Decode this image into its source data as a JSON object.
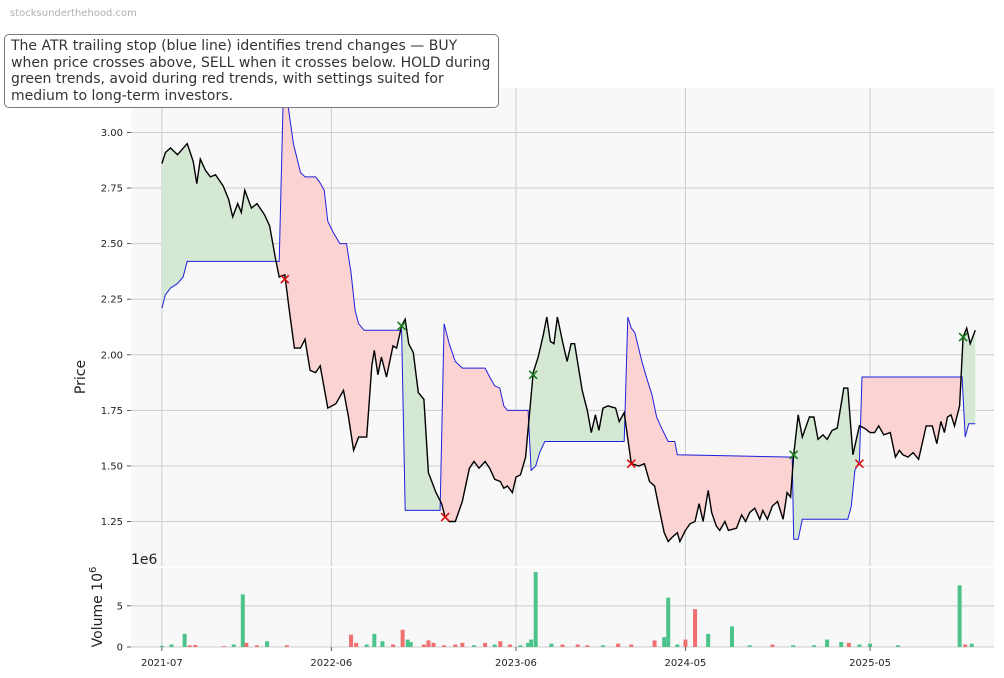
{
  "watermark": "stocksunderthehood.com",
  "description": "The ATR trailing stop (blue line) identifies trend changes — BUY when price crosses above, SELL when it crosses below. HOLD during green trends, avoid during red trends, with settings suited for medium to long-term investors.",
  "colors": {
    "price": "#000000",
    "stop": "#1f1fdd",
    "bull_fill": "#d4e8d4",
    "bear_fill": "#fbd3d3",
    "buy_marker": "#1a7a1a",
    "sell_marker": "#dd1111",
    "vol_up": "#4cc38a",
    "vol_down": "#f07070",
    "plot_bg": "#f8f8f8",
    "grid": "#cccccc"
  },
  "chart_data": {
    "type": "line",
    "ylabel": "Price",
    "volume_ylabel": "Volume  10",
    "volume_ylabel_exp": "6",
    "volume_offset_label": "1e6",
    "x_ticks": [
      "2021-07",
      "2022-06",
      "2023-06",
      "2024-05",
      "2025-05"
    ],
    "x_tick_dates": [
      "2021-07-01",
      "2022-06-01",
      "2023-06-01",
      "2024-05-01",
      "2025-05-01"
    ],
    "price_yticks": [
      "1.25",
      "1.50",
      "1.75",
      "2.00",
      "2.25",
      "2.50",
      "2.75",
      "3.00"
    ],
    "volume_yticks": [
      "0",
      "5"
    ],
    "ylim": [
      1.05,
      3.2
    ],
    "volume_ylim": [
      0,
      9.6
    ],
    "price": [
      [
        "2021-07-01",
        2.86
      ],
      [
        "2021-07-08",
        2.91
      ],
      [
        "2021-07-18",
        2.93
      ],
      [
        "2021-08-01",
        2.9
      ],
      [
        "2021-08-20",
        2.95
      ],
      [
        "2021-09-01",
        2.87
      ],
      [
        "2021-09-08",
        2.77
      ],
      [
        "2021-09-15",
        2.88
      ],
      [
        "2021-09-25",
        2.83
      ],
      [
        "2021-10-05",
        2.8
      ],
      [
        "2021-10-15",
        2.81
      ],
      [
        "2021-10-30",
        2.76
      ],
      [
        "2021-11-10",
        2.7
      ],
      [
        "2021-11-18",
        2.62
      ],
      [
        "2021-11-28",
        2.68
      ],
      [
        "2021-12-05",
        2.64
      ],
      [
        "2021-12-12",
        2.74
      ],
      [
        "2021-12-25",
        2.66
      ],
      [
        "2022-01-05",
        2.68
      ],
      [
        "2022-01-20",
        2.63
      ],
      [
        "2022-01-30",
        2.58
      ],
      [
        "2022-02-10",
        2.44
      ],
      [
        "2022-02-18",
        2.35
      ],
      [
        "2022-03-01",
        2.36
      ],
      [
        "2022-03-10",
        2.2
      ],
      [
        "2022-03-20",
        2.03
      ],
      [
        "2022-04-01",
        2.03
      ],
      [
        "2022-04-10",
        2.07
      ],
      [
        "2022-04-20",
        1.93
      ],
      [
        "2022-05-01",
        1.92
      ],
      [
        "2022-05-10",
        1.95
      ],
      [
        "2022-05-25",
        1.76
      ],
      [
        "2022-06-10",
        1.78
      ],
      [
        "2022-06-25",
        1.84
      ],
      [
        "2022-07-05",
        1.72
      ],
      [
        "2022-07-15",
        1.57
      ],
      [
        "2022-07-25",
        1.63
      ],
      [
        "2022-08-10",
        1.63
      ],
      [
        "2022-08-20",
        1.95
      ],
      [
        "2022-08-25",
        2.02
      ],
      [
        "2022-09-01",
        1.91
      ],
      [
        "2022-09-08",
        1.99
      ],
      [
        "2022-09-18",
        1.9
      ],
      [
        "2022-10-01",
        2.04
      ],
      [
        "2022-10-08",
        2.03
      ],
      [
        "2022-10-18",
        2.13
      ],
      [
        "2022-10-25",
        2.16
      ],
      [
        "2022-11-01",
        2.05
      ],
      [
        "2022-11-10",
        2.01
      ],
      [
        "2022-11-20",
        1.83
      ],
      [
        "2022-12-01",
        1.8
      ],
      [
        "2022-12-10",
        1.47
      ],
      [
        "2022-12-25",
        1.38
      ],
      [
        "2023-01-05",
        1.33
      ],
      [
        "2023-01-12",
        1.27
      ],
      [
        "2023-01-20",
        1.25
      ],
      [
        "2023-02-01",
        1.25
      ],
      [
        "2023-02-15",
        1.34
      ],
      [
        "2023-03-01",
        1.49
      ],
      [
        "2023-03-10",
        1.52
      ],
      [
        "2023-03-20",
        1.49
      ],
      [
        "2023-04-01",
        1.52
      ],
      [
        "2023-04-10",
        1.49
      ],
      [
        "2023-04-20",
        1.44
      ],
      [
        "2023-05-01",
        1.43
      ],
      [
        "2023-05-08",
        1.4
      ],
      [
        "2023-05-15",
        1.41
      ],
      [
        "2023-05-25",
        1.38
      ],
      [
        "2023-06-01",
        1.45
      ],
      [
        "2023-06-10",
        1.46
      ],
      [
        "2023-06-20",
        1.54
      ],
      [
        "2023-07-05",
        1.92
      ],
      [
        "2023-07-15",
        1.99
      ],
      [
        "2023-07-25",
        2.09
      ],
      [
        "2023-08-01",
        2.17
      ],
      [
        "2023-08-08",
        2.06
      ],
      [
        "2023-08-15",
        2.05
      ],
      [
        "2023-08-22",
        2.17
      ],
      [
        "2023-09-01",
        2.06
      ],
      [
        "2023-09-10",
        1.97
      ],
      [
        "2023-09-18",
        2.05
      ],
      [
        "2023-09-25",
        2.05
      ],
      [
        "2023-10-10",
        1.84
      ],
      [
        "2023-10-20",
        1.75
      ],
      [
        "2023-10-28",
        1.65
      ],
      [
        "2023-11-05",
        1.73
      ],
      [
        "2023-11-12",
        1.66
      ],
      [
        "2023-11-20",
        1.76
      ],
      [
        "2023-11-30",
        1.77
      ],
      [
        "2023-12-15",
        1.76
      ],
      [
        "2023-12-22",
        1.7
      ],
      [
        "2024-01-01",
        1.74
      ],
      [
        "2024-01-15",
        1.51
      ],
      [
        "2024-01-30",
        1.5
      ],
      [
        "2024-02-10",
        1.51
      ],
      [
        "2024-02-20",
        1.43
      ],
      [
        "2024-03-01",
        1.41
      ],
      [
        "2024-03-10",
        1.31
      ],
      [
        "2024-03-20",
        1.2
      ],
      [
        "2024-03-28",
        1.16
      ],
      [
        "2024-04-05",
        1.18
      ],
      [
        "2024-04-15",
        1.2
      ],
      [
        "2024-04-20",
        1.16
      ],
      [
        "2024-05-01",
        1.21
      ],
      [
        "2024-05-10",
        1.24
      ],
      [
        "2024-05-20",
        1.25
      ],
      [
        "2024-05-28",
        1.33
      ],
      [
        "2024-06-05",
        1.25
      ],
      [
        "2024-06-15",
        1.39
      ],
      [
        "2024-06-22",
        1.29
      ],
      [
        "2024-07-01",
        1.23
      ],
      [
        "2024-07-08",
        1.21
      ],
      [
        "2024-07-18",
        1.25
      ],
      [
        "2024-07-25",
        1.21
      ],
      [
        "2024-08-10",
        1.22
      ],
      [
        "2024-08-20",
        1.28
      ],
      [
        "2024-08-28",
        1.25
      ],
      [
        "2024-09-05",
        1.29
      ],
      [
        "2024-09-15",
        1.31
      ],
      [
        "2024-09-25",
        1.26
      ],
      [
        "2024-10-01",
        1.3
      ],
      [
        "2024-10-10",
        1.26
      ],
      [
        "2024-10-20",
        1.32
      ],
      [
        "2024-10-30",
        1.34
      ],
      [
        "2024-11-10",
        1.26
      ],
      [
        "2024-11-18",
        1.38
      ],
      [
        "2024-11-25",
        1.36
      ],
      [
        "2024-12-01",
        1.55
      ],
      [
        "2024-12-10",
        1.73
      ],
      [
        "2024-12-18",
        1.63
      ],
      [
        "2025-01-01",
        1.72
      ],
      [
        "2025-01-10",
        1.72
      ],
      [
        "2025-01-18",
        1.62
      ],
      [
        "2025-01-28",
        1.64
      ],
      [
        "2025-02-05",
        1.62
      ],
      [
        "2025-02-15",
        1.66
      ],
      [
        "2025-02-25",
        1.67
      ],
      [
        "2025-03-10",
        1.85
      ],
      [
        "2025-03-18",
        1.85
      ],
      [
        "2025-03-28",
        1.55
      ],
      [
        "2025-04-10",
        1.68
      ],
      [
        "2025-04-20",
        1.67
      ],
      [
        "2025-05-01",
        1.65
      ],
      [
        "2025-05-10",
        1.65
      ],
      [
        "2025-05-18",
        1.68
      ],
      [
        "2025-05-28",
        1.64
      ],
      [
        "2025-06-10",
        1.65
      ],
      [
        "2025-06-20",
        1.54
      ],
      [
        "2025-06-28",
        1.57
      ],
      [
        "2025-07-05",
        1.55
      ],
      [
        "2025-07-15",
        1.54
      ],
      [
        "2025-07-25",
        1.56
      ],
      [
        "2025-08-05",
        1.53
      ],
      [
        "2025-08-20",
        1.68
      ],
      [
        "2025-09-01",
        1.68
      ],
      [
        "2025-09-10",
        1.6
      ],
      [
        "2025-09-18",
        1.7
      ],
      [
        "2025-09-25",
        1.65
      ],
      [
        "2025-10-01",
        1.72
      ],
      [
        "2025-10-08",
        1.73
      ],
      [
        "2025-10-15",
        1.68
      ],
      [
        "2025-10-25",
        1.77
      ],
      [
        "2025-11-01",
        2.08
      ],
      [
        "2025-11-08",
        2.12
      ],
      [
        "2025-11-15",
        2.05
      ],
      [
        "2025-11-25",
        2.11
      ]
    ],
    "atr_stop": [
      [
        "2021-07-01",
        2.21
      ],
      [
        "2021-07-08",
        2.27
      ],
      [
        "2021-07-18",
        2.3
      ],
      [
        "2021-08-01",
        2.32
      ],
      [
        "2021-08-12",
        2.35
      ],
      [
        "2021-08-20",
        2.42
      ],
      [
        "2022-02-18",
        2.42
      ],
      [
        "2022-02-26",
        3.17
      ],
      [
        "2022-03-05",
        3.16
      ],
      [
        "2022-03-18",
        2.95
      ],
      [
        "2022-04-01",
        2.82
      ],
      [
        "2022-04-10",
        2.8
      ],
      [
        "2022-05-01",
        2.8
      ],
      [
        "2022-05-08",
        2.78
      ],
      [
        "2022-05-18",
        2.74
      ],
      [
        "2022-05-25",
        2.6
      ],
      [
        "2022-06-05",
        2.55
      ],
      [
        "2022-06-18",
        2.5
      ],
      [
        "2022-07-01",
        2.5
      ],
      [
        "2022-07-10",
        2.37
      ],
      [
        "2022-07-18",
        2.2
      ],
      [
        "2022-07-25",
        2.14
      ],
      [
        "2022-08-05",
        2.11
      ],
      [
        "2022-10-18",
        2.11
      ],
      [
        "2022-10-25",
        1.3
      ],
      [
        "2023-01-02",
        1.3
      ],
      [
        "2023-01-10",
        2.14
      ],
      [
        "2023-01-20",
        2.05
      ],
      [
        "2023-02-01",
        1.97
      ],
      [
        "2023-02-15",
        1.94
      ],
      [
        "2023-04-01",
        1.94
      ],
      [
        "2023-04-10",
        1.9
      ],
      [
        "2023-04-20",
        1.86
      ],
      [
        "2023-04-30",
        1.85
      ],
      [
        "2023-05-08",
        1.77
      ],
      [
        "2023-05-15",
        1.75
      ],
      [
        "2023-06-25",
        1.75
      ],
      [
        "2023-07-01",
        1.48
      ],
      [
        "2023-07-10",
        1.5
      ],
      [
        "2023-07-18",
        1.56
      ],
      [
        "2023-07-28",
        1.61
      ],
      [
        "2024-01-01",
        1.61
      ],
      [
        "2024-01-08",
        2.17
      ],
      [
        "2024-01-15",
        2.12
      ],
      [
        "2024-01-22",
        2.1
      ],
      [
        "2024-02-05",
        1.97
      ],
      [
        "2024-02-15",
        1.89
      ],
      [
        "2024-02-25",
        1.82
      ],
      [
        "2024-03-05",
        1.72
      ],
      [
        "2024-03-15",
        1.67
      ],
      [
        "2024-03-28",
        1.61
      ],
      [
        "2024-04-10",
        1.61
      ],
      [
        "2024-04-15",
        1.55
      ],
      [
        "2024-11-28",
        1.54
      ],
      [
        "2024-12-01",
        1.17
      ],
      [
        "2024-12-10",
        1.17
      ],
      [
        "2024-12-18",
        1.26
      ],
      [
        "2025-03-18",
        1.26
      ],
      [
        "2025-03-25",
        1.32
      ],
      [
        "2025-04-01",
        1.48
      ],
      [
        "2025-04-10",
        1.52
      ],
      [
        "2025-04-15",
        1.9
      ],
      [
        "2025-10-30",
        1.9
      ],
      [
        "2025-11-05",
        1.63
      ],
      [
        "2025-11-12",
        1.69
      ],
      [
        "2025-11-25",
        1.69
      ]
    ],
    "buy_signals": [
      [
        "2022-10-18",
        2.13
      ],
      [
        "2023-07-05",
        1.91
      ],
      [
        "2024-12-01",
        1.55
      ],
      [
        "2025-11-01",
        2.08
      ]
    ],
    "sell_signals": [
      [
        "2022-03-01",
        2.34
      ],
      [
        "2023-01-12",
        1.27
      ],
      [
        "2024-01-15",
        1.51
      ],
      [
        "2025-04-10",
        1.51
      ]
    ],
    "volume": [
      [
        "2021-07-01",
        0.15,
        "up"
      ],
      [
        "2021-07-20",
        0.3,
        "up"
      ],
      [
        "2021-08-15",
        1.6,
        "up"
      ],
      [
        "2021-08-25",
        0.2,
        "down"
      ],
      [
        "2021-09-05",
        0.25,
        "down"
      ],
      [
        "2021-11-01",
        0.1,
        "down"
      ],
      [
        "2021-11-20",
        0.3,
        "up"
      ],
      [
        "2021-12-08",
        6.4,
        "up"
      ],
      [
        "2021-12-15",
        0.5,
        "down"
      ],
      [
        "2022-01-05",
        0.2,
        "down"
      ],
      [
        "2022-01-25",
        0.7,
        "up"
      ],
      [
        "2022-03-05",
        0.2,
        "down"
      ],
      [
        "2022-07-10",
        1.5,
        "down"
      ],
      [
        "2022-07-20",
        0.5,
        "down"
      ],
      [
        "2022-08-10",
        0.3,
        "up"
      ],
      [
        "2022-08-25",
        1.6,
        "up"
      ],
      [
        "2022-09-10",
        0.7,
        "up"
      ],
      [
        "2022-10-01",
        0.3,
        "down"
      ],
      [
        "2022-10-20",
        2.1,
        "down"
      ],
      [
        "2022-10-30",
        0.9,
        "up"
      ],
      [
        "2022-11-05",
        0.6,
        "up"
      ],
      [
        "2022-12-01",
        0.3,
        "down"
      ],
      [
        "2022-12-10",
        0.8,
        "down"
      ],
      [
        "2022-12-20",
        0.5,
        "down"
      ],
      [
        "2023-01-10",
        0.2,
        "down"
      ],
      [
        "2023-02-01",
        0.3,
        "down"
      ],
      [
        "2023-02-15",
        0.5,
        "down"
      ],
      [
        "2023-03-10",
        0.2,
        "up"
      ],
      [
        "2023-04-01",
        0.5,
        "down"
      ],
      [
        "2023-04-20",
        0.3,
        "up"
      ],
      [
        "2023-05-01",
        0.7,
        "down"
      ],
      [
        "2023-05-20",
        0.3,
        "down"
      ],
      [
        "2023-06-10",
        0.2,
        "up"
      ],
      [
        "2023-06-25",
        0.5,
        "up"
      ],
      [
        "2023-07-01",
        0.9,
        "up"
      ],
      [
        "2023-07-10",
        9.1,
        "up"
      ],
      [
        "2023-08-10",
        0.4,
        "up"
      ],
      [
        "2023-09-01",
        0.3,
        "down"
      ],
      [
        "2023-10-01",
        0.3,
        "down"
      ],
      [
        "2023-10-20",
        0.2,
        "down"
      ],
      [
        "2023-11-20",
        0.2,
        "up"
      ],
      [
        "2023-12-20",
        0.4,
        "down"
      ],
      [
        "2024-01-15",
        0.3,
        "down"
      ],
      [
        "2024-03-01",
        0.8,
        "down"
      ],
      [
        "2024-03-20",
        1.2,
        "up"
      ],
      [
        "2024-03-28",
        6.0,
        "up"
      ],
      [
        "2024-04-15",
        0.3,
        "up"
      ],
      [
        "2024-05-01",
        0.9,
        "down"
      ],
      [
        "2024-05-20",
        4.6,
        "down"
      ],
      [
        "2024-06-15",
        1.6,
        "up"
      ],
      [
        "2024-08-01",
        2.5,
        "up"
      ],
      [
        "2024-09-05",
        0.2,
        "up"
      ],
      [
        "2024-10-20",
        0.3,
        "down"
      ],
      [
        "2024-11-30",
        0.2,
        "up"
      ],
      [
        "2025-01-10",
        0.2,
        "up"
      ],
      [
        "2025-02-05",
        0.9,
        "up"
      ],
      [
        "2025-03-05",
        0.6,
        "up"
      ],
      [
        "2025-03-20",
        0.5,
        "down"
      ],
      [
        "2025-04-10",
        0.3,
        "up"
      ],
      [
        "2025-05-01",
        0.4,
        "up"
      ],
      [
        "2025-06-25",
        0.2,
        "up"
      ],
      [
        "2025-10-25",
        7.5,
        "up"
      ],
      [
        "2025-11-05",
        0.3,
        "down"
      ],
      [
        "2025-11-18",
        0.4,
        "up"
      ]
    ]
  }
}
